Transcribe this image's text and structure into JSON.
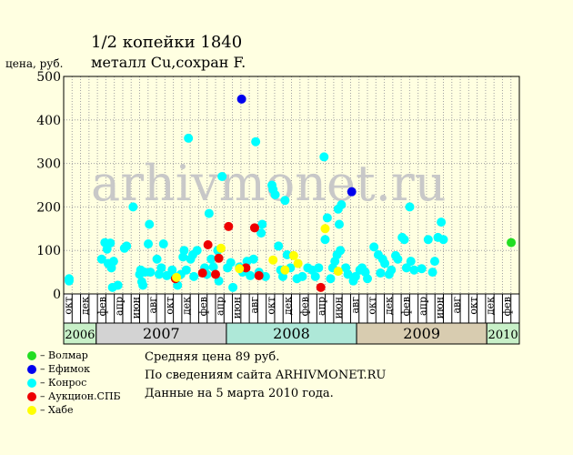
{
  "title": "1/2 копейки 1840",
  "subtitle": "металл Cu,сохран F.",
  "watermark": "arhivmonet.ru",
  "info": {
    "avg": "Средняя цена 89 руб.",
    "source": "По  сведениям сайта ARHIVMONET.RU",
    "date": "Данные на 5 марта 2010 года."
  },
  "legend": [
    {
      "name": "– Волмар",
      "color": "#22dd22"
    },
    {
      "name": "– Ефимок",
      "color": "#0000ee"
    },
    {
      "name": "– Конрос",
      "color": "#00ffff"
    },
    {
      "name": "– Аукцион.СПБ",
      "color": "#ee0000"
    },
    {
      "name": "– Хабе",
      "color": "#ffff00"
    }
  ],
  "chart_data": {
    "type": "scatter",
    "ylabel": "цена, руб.",
    "ylim": [
      0,
      500
    ],
    "yticks": [
      "0",
      "100",
      "200",
      "300",
      "400",
      "500"
    ],
    "grid": true,
    "months": [
      "окт",
      "",
      "дек",
      "",
      "фев",
      "",
      "апр",
      "",
      "июн",
      "",
      "авг",
      "",
      "окт",
      "",
      "дек",
      "",
      "фев",
      "",
      "апр",
      "",
      "июн",
      "",
      "авг",
      "",
      "окт",
      "",
      "дек",
      "",
      "фев",
      "",
      "апр",
      "",
      "июн",
      "",
      "авг",
      "",
      "окт",
      "",
      "дек",
      "",
      "фев",
      "",
      "апр",
      "",
      "июн",
      "",
      "авг",
      "",
      "окт",
      "",
      "дек",
      "",
      "фев",
      ""
    ],
    "years": [
      {
        "label": "2006",
        "start": 0,
        "end": 3,
        "color": "#c8f0c8"
      },
      {
        "label": "2007",
        "start": 3,
        "end": 15,
        "color": "#d3d3d3"
      },
      {
        "label": "2008",
        "start": 15,
        "end": 27,
        "color": "#aee8d8"
      },
      {
        "label": "2009",
        "start": 27,
        "end": 39,
        "color": "#d8ccb0"
      },
      {
        "label": "2010",
        "start": 39,
        "end": 42,
        "color": "#c8f0c8"
      }
    ],
    "series": [
      {
        "name": "Волмар",
        "color": "#22dd22",
        "points": [
          [
            41.25,
            118
          ]
        ]
      },
      {
        "name": "Ефимок",
        "color": "#0000ee",
        "points": [
          [
            16.4,
            448
          ],
          [
            26.55,
            235
          ]
        ]
      },
      {
        "name": "Конрос",
        "color": "#00ffff",
        "points": [
          [
            0.5,
            35
          ],
          [
            0.5,
            30
          ],
          [
            3.5,
            80
          ],
          [
            3.8,
            118
          ],
          [
            4.0,
            103
          ],
          [
            4.1,
            70
          ],
          [
            4.3,
            117
          ],
          [
            4.4,
            60
          ],
          [
            4.6,
            75
          ],
          [
            4.5,
            15
          ],
          [
            5.0,
            20
          ],
          [
            5.6,
            105
          ],
          [
            5.8,
            110
          ],
          [
            6.4,
            200
          ],
          [
            7.0,
            45
          ],
          [
            7.1,
            55
          ],
          [
            7.2,
            28
          ],
          [
            7.5,
            50
          ],
          [
            7.3,
            20
          ],
          [
            7.8,
            115
          ],
          [
            7.9,
            160
          ],
          [
            8.0,
            50
          ],
          [
            8.6,
            80
          ],
          [
            8.8,
            45
          ],
          [
            9.0,
            60
          ],
          [
            9.2,
            115
          ],
          [
            9.5,
            42
          ],
          [
            10.0,
            55
          ],
          [
            10.2,
            40
          ],
          [
            10.5,
            20
          ],
          [
            10.8,
            45
          ],
          [
            11.0,
            85
          ],
          [
            11.1,
            100
          ],
          [
            11.3,
            55
          ],
          [
            11.5,
            358
          ],
          [
            11.7,
            80
          ],
          [
            11.9,
            90
          ],
          [
            12.0,
            40
          ],
          [
            12.3,
            100
          ],
          [
            13.0,
            60
          ],
          [
            13.2,
            45
          ],
          [
            13.4,
            185
          ],
          [
            13.6,
            80
          ],
          [
            13.8,
            62
          ],
          [
            14.2,
            100
          ],
          [
            14.3,
            30
          ],
          [
            14.6,
            270
          ],
          [
            15.1,
            60
          ],
          [
            15.4,
            72
          ],
          [
            15.6,
            15
          ],
          [
            16.2,
            62
          ],
          [
            16.5,
            50
          ],
          [
            16.9,
            75
          ],
          [
            17.2,
            42
          ],
          [
            17.5,
            80
          ],
          [
            17.7,
            350
          ],
          [
            18.0,
            50
          ],
          [
            18.2,
            140
          ],
          [
            18.3,
            160
          ],
          [
            18.6,
            40
          ],
          [
            19.2,
            250
          ],
          [
            19.3,
            240
          ],
          [
            19.5,
            228
          ],
          [
            19.8,
            110
          ],
          [
            20.0,
            55
          ],
          [
            20.2,
            40
          ],
          [
            20.4,
            215
          ],
          [
            20.6,
            90
          ],
          [
            20.9,
            60
          ],
          [
            21.5,
            35
          ],
          [
            22.0,
            40
          ],
          [
            22.5,
            60
          ],
          [
            22.9,
            55
          ],
          [
            23.2,
            40
          ],
          [
            23.5,
            60
          ],
          [
            24.0,
            315
          ],
          [
            24.1,
            125
          ],
          [
            24.3,
            175
          ],
          [
            24.6,
            35
          ],
          [
            24.8,
            60
          ],
          [
            25.0,
            75
          ],
          [
            25.2,
            90
          ],
          [
            25.3,
            195
          ],
          [
            25.4,
            160
          ],
          [
            25.6,
            205
          ],
          [
            25.5,
            100
          ],
          [
            26.0,
            60
          ],
          [
            26.2,
            45
          ],
          [
            26.7,
            30
          ],
          [
            26.9,
            40
          ],
          [
            27.3,
            55
          ],
          [
            27.5,
            60
          ],
          [
            27.8,
            50
          ],
          [
            28.0,
            35
          ],
          [
            28.6,
            108
          ],
          [
            29.0,
            90
          ],
          [
            29.2,
            48
          ],
          [
            29.4,
            80
          ],
          [
            29.6,
            70
          ],
          [
            30.0,
            45
          ],
          [
            30.2,
            55
          ],
          [
            30.6,
            88
          ],
          [
            30.8,
            80
          ],
          [
            31.2,
            130
          ],
          [
            31.4,
            125
          ],
          [
            31.6,
            60
          ],
          [
            31.9,
            200
          ],
          [
            32.0,
            75
          ],
          [
            32.3,
            55
          ],
          [
            33.0,
            58
          ],
          [
            33.6,
            125
          ],
          [
            34.0,
            50
          ],
          [
            34.2,
            75
          ],
          [
            34.5,
            130
          ],
          [
            34.8,
            165
          ],
          [
            35.0,
            125
          ]
        ]
      },
      {
        "name": "Аукцион.СПБ",
        "color": "#ee0000",
        "points": [
          [
            10.3,
            35
          ],
          [
            12.8,
            48
          ],
          [
            13.3,
            113
          ],
          [
            14.0,
            45
          ],
          [
            14.3,
            82
          ],
          [
            15.2,
            155
          ],
          [
            16.8,
            60
          ],
          [
            17.6,
            152
          ],
          [
            18.0,
            42
          ],
          [
            23.7,
            15
          ]
        ]
      },
      {
        "name": "Хабе",
        "color": "#ffff00",
        "points": [
          [
            10.4,
            38
          ],
          [
            14.5,
            105
          ],
          [
            16.2,
            58
          ],
          [
            19.3,
            78
          ],
          [
            20.4,
            55
          ],
          [
            21.2,
            88
          ],
          [
            21.6,
            70
          ],
          [
            24.1,
            150
          ],
          [
            25.3,
            52
          ]
        ]
      }
    ]
  }
}
